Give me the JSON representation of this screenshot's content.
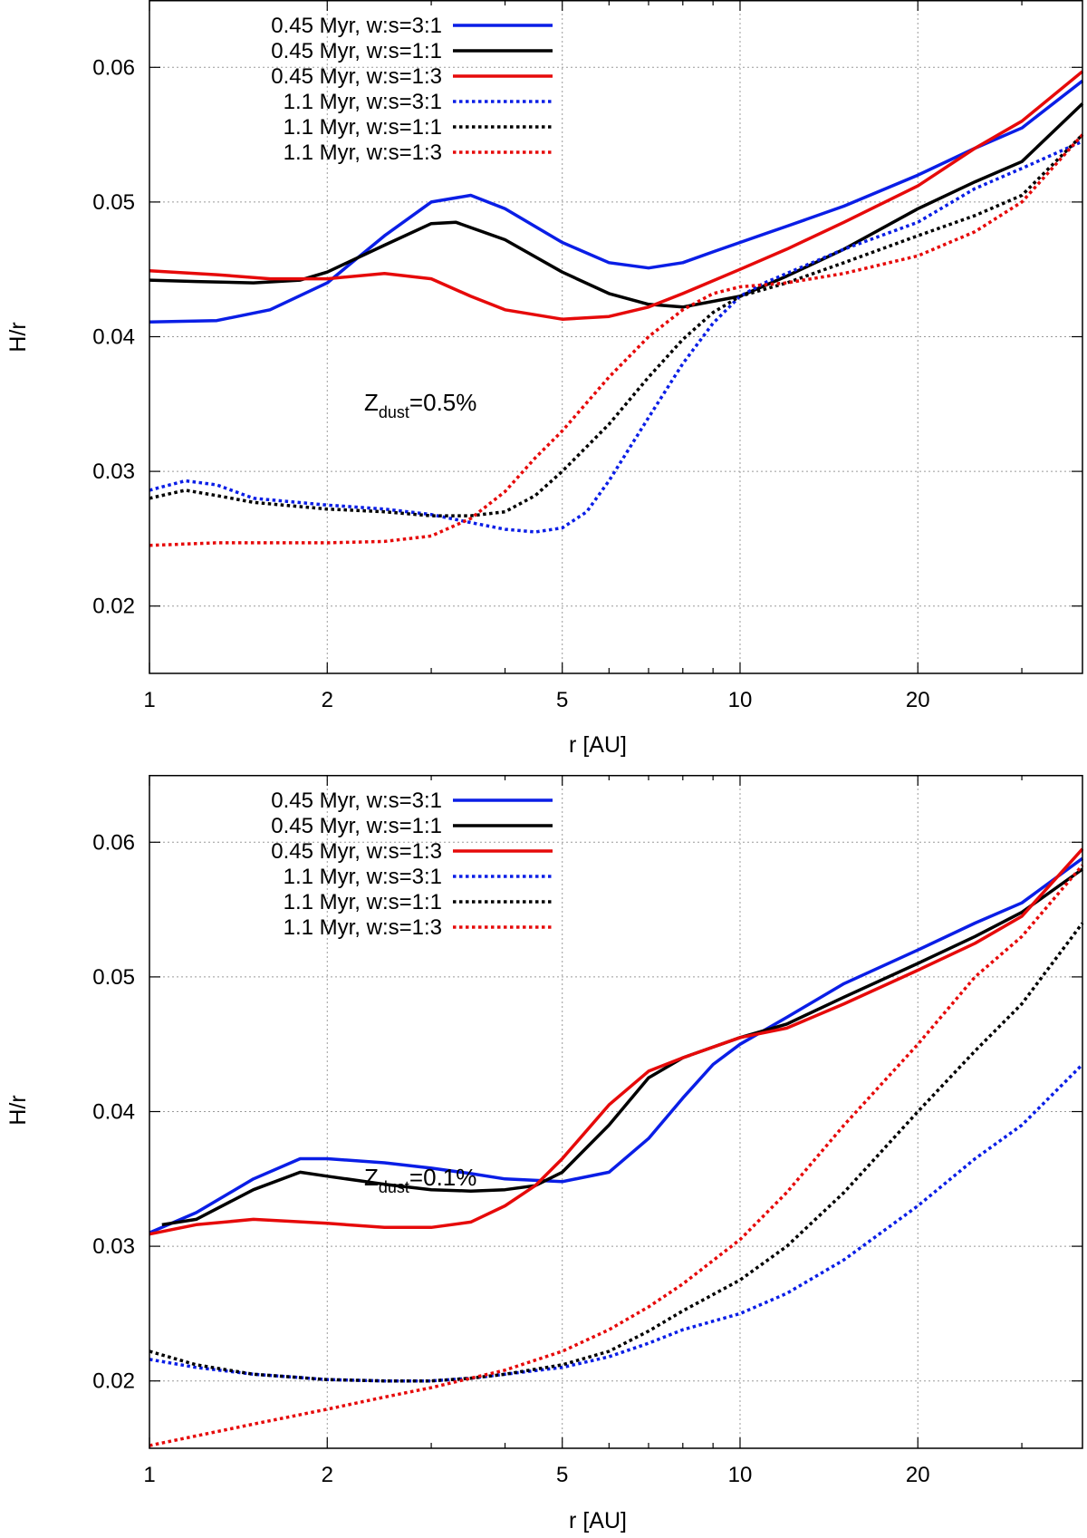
{
  "colors": {
    "blue": "#0a1ee6",
    "black": "#000000",
    "red": "#e60a0a"
  },
  "chart_data": [
    {
      "type": "line",
      "annotation": {
        "prefix": "Z",
        "subscript": "dust",
        "suffix": "=0.5%"
      },
      "xlabel": "r [AU]",
      "ylabel": "H/r",
      "xscale": "log",
      "xlim": [
        1,
        38
      ],
      "ylim": [
        0.015,
        0.065
      ],
      "xticks": [
        1,
        2,
        5,
        10,
        20
      ],
      "xtick_labels": [
        "1",
        "2",
        "5",
        "10",
        "20"
      ],
      "yticks": [
        0.02,
        0.03,
        0.04,
        0.05,
        0.06
      ],
      "ytick_labels": [
        "0.02",
        "0.03",
        "0.04",
        "0.05",
        "0.06"
      ],
      "grid": true,
      "legend_position": "top-left",
      "series": [
        {
          "name": "0.45 Myr, w:s=3:1",
          "color": "blue",
          "style": "solid",
          "x": [
            1,
            1.3,
            1.6,
            2,
            2.5,
            3,
            3.5,
            4,
            5,
            6,
            7,
            8,
            9,
            10,
            12,
            15,
            20,
            25,
            30,
            38
          ],
          "y": [
            0.0411,
            0.0412,
            0.042,
            0.044,
            0.0475,
            0.05,
            0.0505,
            0.0495,
            0.047,
            0.0455,
            0.0451,
            0.0455,
            0.0463,
            0.047,
            0.0482,
            0.0497,
            0.052,
            0.054,
            0.0555,
            0.059
          ]
        },
        {
          "name": "0.45 Myr, w:s=1:1",
          "color": "black",
          "style": "solid",
          "x": [
            1,
            1.2,
            1.5,
            1.8,
            2,
            2.5,
            3,
            3.3,
            4,
            5,
            6,
            7,
            8,
            10,
            12,
            15,
            20,
            25,
            30,
            38
          ],
          "y": [
            0.0442,
            0.0441,
            0.044,
            0.0442,
            0.0448,
            0.0468,
            0.0484,
            0.0485,
            0.0472,
            0.0448,
            0.0432,
            0.0424,
            0.0422,
            0.043,
            0.0445,
            0.0465,
            0.0495,
            0.0515,
            0.053,
            0.0573
          ]
        },
        {
          "name": "0.45 Myr, w:s=1:3",
          "color": "red",
          "style": "solid",
          "x": [
            1,
            1.3,
            1.6,
            2,
            2.5,
            3,
            3.5,
            4,
            5,
            6,
            7,
            8,
            10,
            12,
            15,
            20,
            25,
            30,
            38
          ],
          "y": [
            0.0449,
            0.0446,
            0.0443,
            0.0443,
            0.0447,
            0.0443,
            0.043,
            0.042,
            0.0413,
            0.0415,
            0.0422,
            0.0432,
            0.045,
            0.0465,
            0.0485,
            0.0512,
            0.054,
            0.056,
            0.0597
          ]
        },
        {
          "name": "1.1 Myr, w:s=3:1",
          "color": "blue",
          "style": "dotted",
          "x": [
            1,
            1.15,
            1.3,
            1.5,
            2,
            2.5,
            3,
            3.5,
            4,
            4.5,
            5,
            5.5,
            6,
            7,
            8,
            9,
            10,
            11,
            12,
            15,
            20,
            25,
            30,
            38
          ],
          "y": [
            0.0286,
            0.0293,
            0.029,
            0.028,
            0.0275,
            0.0272,
            0.0268,
            0.0262,
            0.0257,
            0.0255,
            0.0258,
            0.027,
            0.0293,
            0.034,
            0.038,
            0.041,
            0.043,
            0.044,
            0.0447,
            0.0465,
            0.0485,
            0.051,
            0.0525,
            0.0545
          ]
        },
        {
          "name": "1.1 Myr, w:s=1:1",
          "color": "black",
          "style": "dotted",
          "x": [
            1,
            1.15,
            1.3,
            1.5,
            2,
            2.5,
            3,
            3.5,
            4,
            4.5,
            5,
            6,
            7,
            8,
            9,
            10,
            12,
            15,
            20,
            25,
            30,
            38
          ],
          "y": [
            0.028,
            0.0286,
            0.0282,
            0.0277,
            0.0272,
            0.027,
            0.0267,
            0.0267,
            0.027,
            0.0282,
            0.03,
            0.0335,
            0.037,
            0.0398,
            0.0418,
            0.043,
            0.044,
            0.0455,
            0.0475,
            0.049,
            0.0505,
            0.055
          ]
        },
        {
          "name": "1.1 Myr, w:s=1:3",
          "color": "red",
          "style": "dotted",
          "x": [
            1,
            1.3,
            1.6,
            2,
            2.5,
            3,
            3.5,
            4,
            4.5,
            5,
            6,
            7,
            8,
            9,
            10,
            12,
            15,
            20,
            25,
            30,
            38
          ],
          "y": [
            0.0245,
            0.0247,
            0.0247,
            0.0247,
            0.0248,
            0.0252,
            0.0265,
            0.0285,
            0.031,
            0.033,
            0.037,
            0.04,
            0.042,
            0.0432,
            0.0437,
            0.044,
            0.0447,
            0.046,
            0.0478,
            0.05,
            0.055
          ]
        }
      ]
    },
    {
      "type": "line",
      "annotation": {
        "prefix": "Z",
        "subscript": "dust",
        "suffix": "=0.1%"
      },
      "xlabel": "r [AU]",
      "ylabel": "H/r",
      "xscale": "log",
      "xlim": [
        1,
        38
      ],
      "ylim": [
        0.015,
        0.065
      ],
      "xticks": [
        1,
        2,
        5,
        10,
        20
      ],
      "xtick_labels": [
        "1",
        "2",
        "5",
        "10",
        "20"
      ],
      "yticks": [
        0.02,
        0.03,
        0.04,
        0.05,
        0.06
      ],
      "ytick_labels": [
        "0.02",
        "0.03",
        "0.04",
        "0.05",
        "0.06"
      ],
      "grid": true,
      "legend_position": "top-left",
      "series": [
        {
          "name": "0.45 Myr, w:s=3:1",
          "color": "blue",
          "style": "solid",
          "x": [
            1,
            1.2,
            1.5,
            1.8,
            2,
            2.5,
            3,
            3.5,
            4,
            5,
            6,
            7,
            8,
            9,
            10,
            12,
            15,
            20,
            25,
            30,
            38
          ],
          "y": [
            0.031,
            0.0325,
            0.035,
            0.0365,
            0.0365,
            0.0362,
            0.0358,
            0.0354,
            0.035,
            0.0348,
            0.0355,
            0.038,
            0.041,
            0.0435,
            0.045,
            0.047,
            0.0495,
            0.052,
            0.054,
            0.0555,
            0.0588
          ]
        },
        {
          "name": "0.45 Myr, w:s=1:1",
          "color": "black",
          "style": "solid",
          "x": [
            1.05,
            1.2,
            1.5,
            1.8,
            2,
            2.5,
            3,
            3.5,
            4,
            4.5,
            5,
            6,
            7,
            8,
            10,
            12,
            15,
            20,
            25,
            30,
            38
          ],
          "y": [
            0.0316,
            0.032,
            0.0342,
            0.0355,
            0.0352,
            0.0346,
            0.0342,
            0.0341,
            0.0342,
            0.0345,
            0.0355,
            0.039,
            0.0425,
            0.044,
            0.0455,
            0.0465,
            0.0485,
            0.051,
            0.053,
            0.0548,
            0.058
          ]
        },
        {
          "name": "0.45 Myr, w:s=1:3",
          "color": "red",
          "style": "solid",
          "x": [
            1,
            1.2,
            1.5,
            2,
            2.5,
            3,
            3.5,
            4,
            4.5,
            5,
            6,
            7,
            8,
            10,
            12,
            15,
            20,
            25,
            30,
            38
          ],
          "y": [
            0.0309,
            0.0316,
            0.032,
            0.0317,
            0.0314,
            0.0314,
            0.0318,
            0.033,
            0.0345,
            0.0365,
            0.0405,
            0.043,
            0.044,
            0.0455,
            0.0462,
            0.048,
            0.0505,
            0.0525,
            0.0545,
            0.0595
          ]
        },
        {
          "name": "1.1 Myr, w:s=3:1",
          "color": "blue",
          "style": "dotted",
          "x": [
            1,
            1.2,
            1.5,
            2,
            2.5,
            3,
            3.5,
            4,
            5,
            6,
            7,
            8,
            10,
            12,
            15,
            20,
            25,
            30,
            38
          ],
          "y": [
            0.0216,
            0.021,
            0.0205,
            0.0201,
            0.02,
            0.02,
            0.0202,
            0.0205,
            0.021,
            0.0218,
            0.0228,
            0.0238,
            0.025,
            0.0265,
            0.029,
            0.033,
            0.0365,
            0.039,
            0.0435
          ]
        },
        {
          "name": "1.1 Myr, w:s=1:1",
          "color": "black",
          "style": "dotted",
          "x": [
            1,
            1.2,
            1.5,
            2,
            2.5,
            3,
            3.5,
            4,
            5,
            6,
            7,
            8,
            10,
            12,
            15,
            20,
            25,
            30,
            38
          ],
          "y": [
            0.0222,
            0.0212,
            0.0205,
            0.0201,
            0.02,
            0.02,
            0.0202,
            0.0205,
            0.0212,
            0.0222,
            0.0237,
            0.0252,
            0.0275,
            0.03,
            0.034,
            0.04,
            0.0445,
            0.048,
            0.054
          ]
        },
        {
          "name": "1.1 Myr, w:s=1:3",
          "color": "red",
          "style": "dotted",
          "x": [
            1,
            1.5,
            2,
            2.5,
            3,
            3.5,
            4,
            5,
            6,
            7,
            8,
            10,
            12,
            15,
            20,
            25,
            30,
            38
          ],
          "y": [
            0.0152,
            0.0168,
            0.0179,
            0.0188,
            0.0195,
            0.0202,
            0.0208,
            0.0222,
            0.0238,
            0.0255,
            0.0272,
            0.0305,
            0.034,
            0.039,
            0.045,
            0.05,
            0.053,
            0.0583
          ]
        }
      ]
    }
  ]
}
